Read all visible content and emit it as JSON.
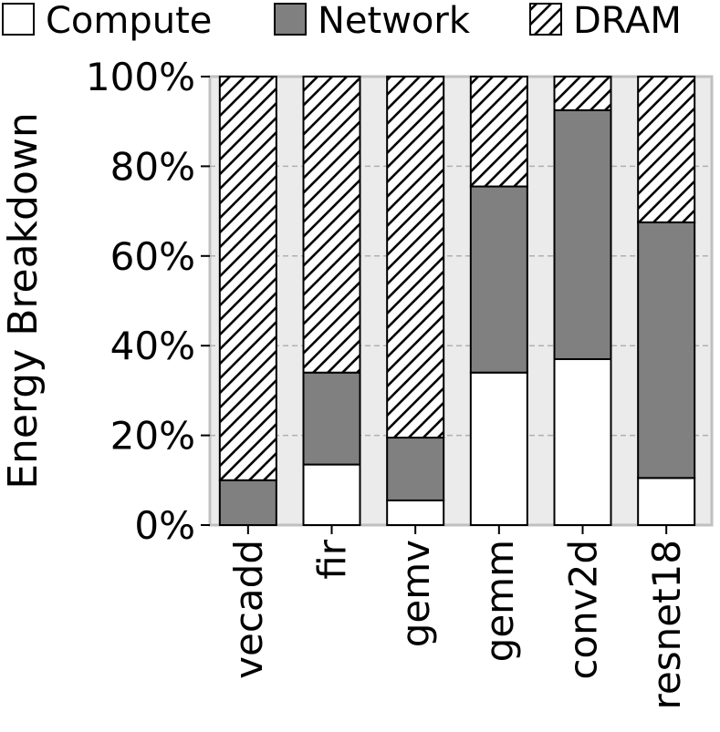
{
  "chart_data": {
    "type": "bar",
    "stacked": true,
    "title": "",
    "xlabel": "",
    "ylabel": "Energy Breakdown",
    "ylim": [
      0,
      100
    ],
    "yticks": [
      "0%",
      "20%",
      "40%",
      "60%",
      "80%",
      "100%"
    ],
    "grid": true,
    "legend_position": "top",
    "categories": [
      "vecadd",
      "fir",
      "gemv",
      "gemm",
      "conv2d",
      "resnet18"
    ],
    "series": [
      {
        "name": "Compute",
        "values": [
          0,
          13.5,
          5.5,
          34,
          37,
          10.5
        ],
        "fill": "#ffffff",
        "pattern": "none"
      },
      {
        "name": "Network",
        "values": [
          10,
          20.5,
          14,
          41.5,
          55.5,
          57
        ],
        "fill": "#808080",
        "pattern": "none"
      },
      {
        "name": "DRAM",
        "values": [
          90,
          66,
          80.5,
          24.5,
          7.5,
          32.5
        ],
        "fill": "#ffffff",
        "pattern": "hatch"
      }
    ],
    "colors": {
      "plot_background": "#ebebeb",
      "grid": "#b0b0b0",
      "frame": "#c0c0c0"
    }
  }
}
